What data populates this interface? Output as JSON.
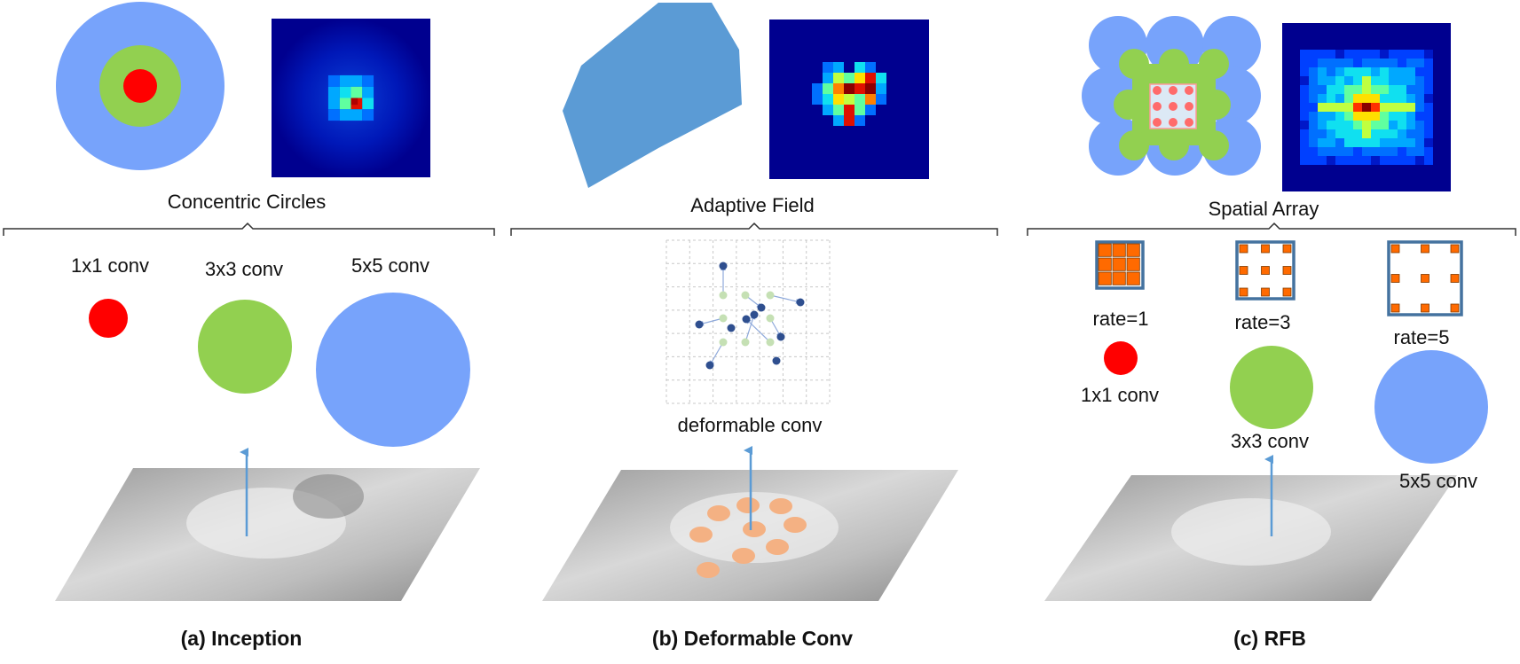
{
  "panels": {
    "a": {
      "top_label": "Concentric Circles",
      "conv_labels": [
        "1x1 conv",
        "3x3 conv",
        "5x5 conv"
      ],
      "caption": "(a) Inception"
    },
    "b": {
      "top_label": "Adaptive Field",
      "conv_label": "deformable conv",
      "caption": "(b) Deformable Conv"
    },
    "c": {
      "top_label": "Spatial Array",
      "rate_labels": [
        "rate=1",
        "rate=3",
        "rate=5"
      ],
      "conv_labels": [
        "1x1 conv",
        "3x3 conv",
        "5x5 conv"
      ],
      "caption": "(c) RFB"
    }
  },
  "colors": {
    "red": "#ff0000",
    "green": "#92d050",
    "blue": "#77a3fb",
    "field_blue": "#5b9bd5",
    "heatmap_bg": "#00008f",
    "orange": "#ff6a00",
    "frame": "#44729f",
    "peach": "#f4b183",
    "arrow": "#5b9bd5"
  }
}
